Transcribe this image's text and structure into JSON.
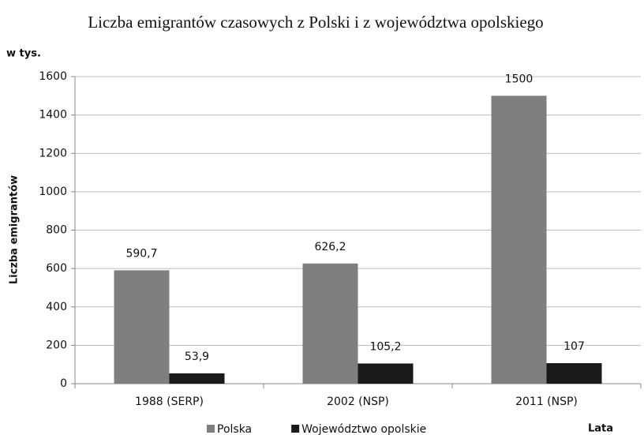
{
  "chart_data": {
    "type": "bar",
    "title": "Liczba emigrantów czasowych z Polski i z województwa opolskiego",
    "unit_label": "w tys.",
    "y_label": "Liczba emigrantów",
    "x_label": "Lata",
    "categories": [
      "1988 (SERP)",
      "2002 (NSP)",
      "2011 (NSP)"
    ],
    "series": [
      {
        "name": "Polska",
        "color": "#7f7f7f",
        "values": [
          590.7,
          626.2,
          1500
        ],
        "value_labels": [
          "590,7",
          "626,2",
          "1500"
        ]
      },
      {
        "name": "Województwo opolskie",
        "color": "#1a1a1a",
        "values": [
          53.9,
          105.2,
          107
        ],
        "value_labels": [
          "53,9",
          "105,2",
          "107"
        ]
      }
    ],
    "ylim": [
      0,
      1600
    ],
    "yticks": [
      0,
      200,
      400,
      600,
      800,
      1000,
      1200,
      1400,
      1600
    ],
    "grid": true
  }
}
